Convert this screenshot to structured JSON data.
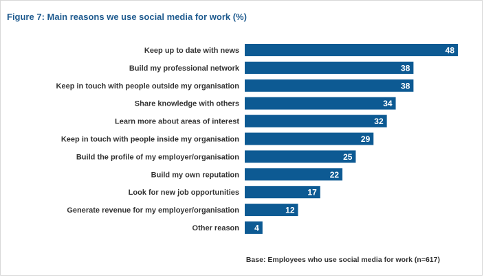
{
  "title": "Figure 7: Main reasons we use social media for work (%)",
  "footnote": "Base: Employees who use social media for work (n=617)",
  "colors": {
    "bar": "#0d5a93",
    "title": "#1f5b8f",
    "value_text": "#ffffff"
  },
  "chart_data": {
    "type": "bar",
    "orientation": "horizontal",
    "title": "Figure 7: Main reasons we use social media for work (%)",
    "categories": [
      "Keep up to date with news",
      "Build my professional network",
      "Keep in touch with people outside my organisation",
      "Share knowledge with others",
      "Learn more about areas of interest",
      "Keep in touch with people inside my organisation",
      "Build the profile of my employer/organisation",
      "Build my own reputation",
      "Look for new job opportunities",
      "Generate revenue for my employer/organisation",
      "Other reason"
    ],
    "values": [
      48,
      38,
      38,
      34,
      32,
      29,
      25,
      22,
      17,
      12,
      4
    ],
    "data_labels": [
      "48",
      "38",
      "38",
      "34",
      "32",
      "29",
      "25",
      "22",
      "17",
      "12",
      "4"
    ],
    "xlim": [
      0,
      48
    ],
    "grid": false,
    "axes_visible": false
  }
}
